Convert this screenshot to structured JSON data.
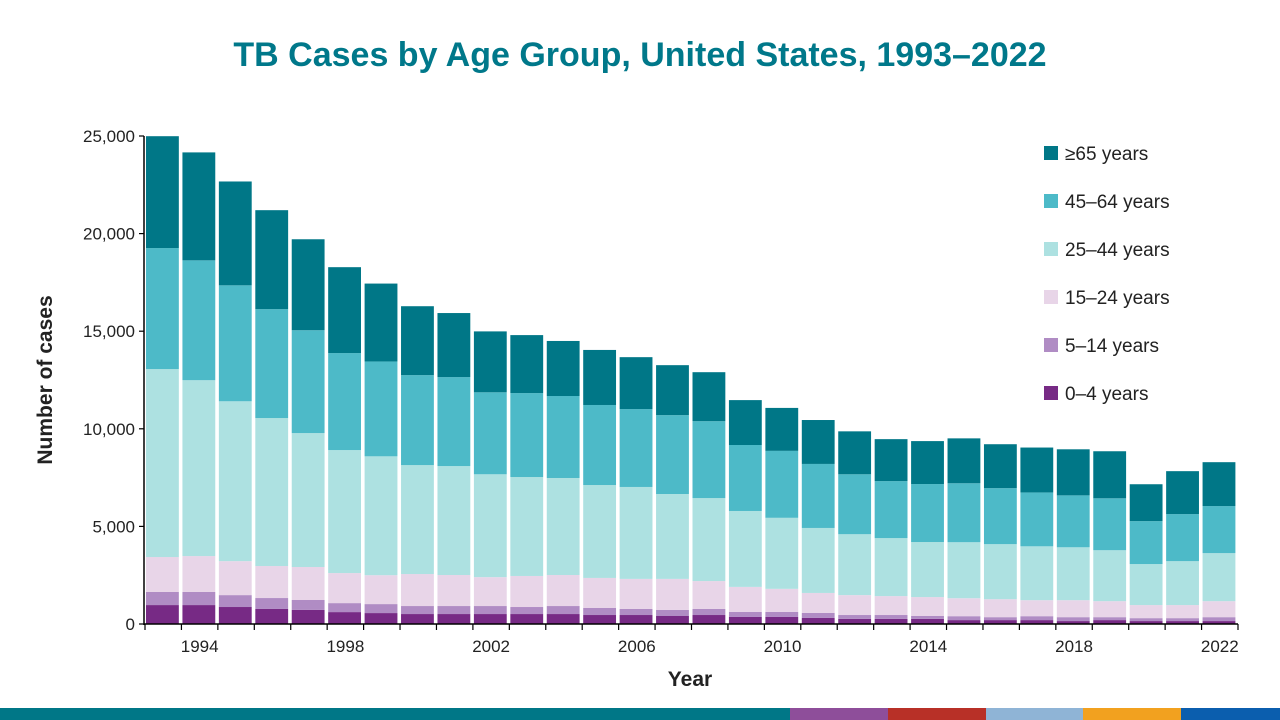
{
  "chart_data": {
    "type": "bar",
    "stacked": true,
    "title": "TB Cases by Age Group, United States, 1993–2022",
    "xlabel": "Year",
    "ylabel": "Number of cases",
    "ylim": [
      0,
      25000
    ],
    "yticks": [
      0,
      5000,
      10000,
      15000,
      20000,
      25000
    ],
    "ytick_labels": [
      "0",
      "5,000",
      "10,000",
      "15,000",
      "20,000",
      "25,000"
    ],
    "xtick_labels": [
      "1994",
      "1998",
      "2002",
      "2006",
      "2010",
      "2014",
      "2018",
      "2022"
    ],
    "grid": false,
    "legend_position": "top-right",
    "categories": [
      1993,
      1994,
      1995,
      1996,
      1997,
      1998,
      1999,
      2000,
      2001,
      2002,
      2003,
      2004,
      2005,
      2006,
      2007,
      2008,
      2009,
      2010,
      2011,
      2012,
      2013,
      2014,
      2015,
      2016,
      2017,
      2018,
      2019,
      2020,
      2021,
      2022
    ],
    "series": [
      {
        "name": "0–4 years",
        "color": "#772A85",
        "values": [
          970,
          970,
          870,
          770,
          720,
          610,
          560,
          510,
          510,
          510,
          510,
          510,
          460,
          460,
          410,
          460,
          360,
          360,
          310,
          260,
          260,
          260,
          200,
          200,
          200,
          150,
          200,
          150,
          150,
          150
        ]
      },
      {
        "name": "5–14 years",
        "color": "#B08CC4",
        "values": [
          670,
          670,
          610,
          560,
          510,
          460,
          460,
          410,
          410,
          410,
          360,
          410,
          360,
          310,
          310,
          310,
          260,
          260,
          260,
          200,
          200,
          150,
          200,
          150,
          200,
          200,
          150,
          150,
          150,
          200
        ]
      },
      {
        "name": "15–24 years",
        "color": "#E8D5E8",
        "values": [
          1790,
          1840,
          1740,
          1640,
          1690,
          1540,
          1480,
          1640,
          1590,
          1480,
          1590,
          1590,
          1540,
          1540,
          1590,
          1430,
          1280,
          1180,
          1020,
          1020,
          970,
          970,
          920,
          920,
          820,
          870,
          820,
          670,
          670,
          820
        ]
      },
      {
        "name": "25–44 years",
        "color": "#ADE1E1",
        "values": [
          9630,
          9010,
          8190,
          7580,
          6860,
          6300,
          6090,
          5580,
          5580,
          5270,
          5070,
          4970,
          4760,
          4710,
          4350,
          4250,
          3890,
          3640,
          3330,
          3120,
          2970,
          2820,
          2870,
          2820,
          2760,
          2710,
          2610,
          2100,
          2250,
          2460
        ]
      },
      {
        "name": "45–64 years",
        "color": "#4DBAC8",
        "values": [
          6200,
          6140,
          5940,
          5580,
          5270,
          4970,
          4860,
          4610,
          4560,
          4200,
          4300,
          4200,
          4100,
          3990,
          4040,
          3940,
          3380,
          3430,
          3280,
          3070,
          2920,
          2970,
          3020,
          2870,
          2760,
          2660,
          2660,
          2200,
          2410,
          2410
        ]
      },
      {
        "name": "≥65 years",
        "color": "#007787",
        "values": [
          5730,
          5530,
          5320,
          5070,
          4660,
          4400,
          3990,
          3530,
          3280,
          3120,
          2970,
          2820,
          2820,
          2660,
          2560,
          2510,
          2300,
          2200,
          2250,
          2200,
          2150,
          2200,
          2300,
          2250,
          2300,
          2360,
          2410,
          1890,
          2200,
          2250
        ]
      }
    ]
  },
  "footer_strip_colors": [
    "#007787",
    "#8E4E9A",
    "#B83027",
    "#8FB4D6",
    "#F2A11F",
    "#0B5EAE"
  ]
}
